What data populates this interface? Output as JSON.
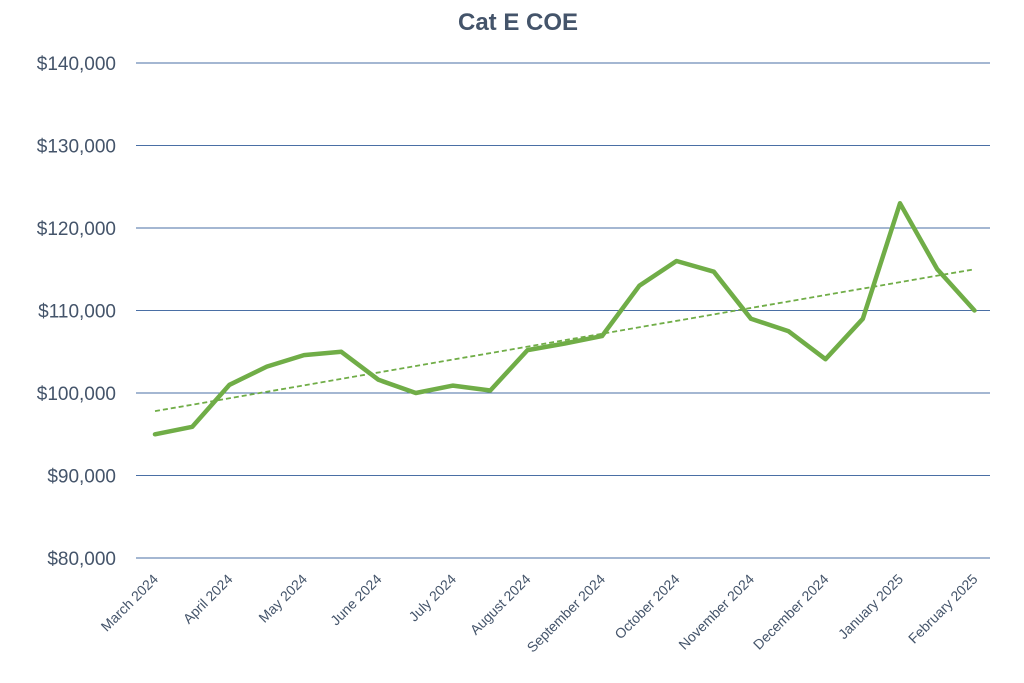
{
  "chart_data": {
    "type": "line",
    "title": "Cat E COE",
    "xlabel": "",
    "ylabel": "",
    "ylim": [
      80000,
      140000
    ],
    "yticks": [
      80000,
      90000,
      100000,
      110000,
      120000,
      130000,
      140000
    ],
    "ytick_labels": [
      "$80,000",
      "$90,000",
      "$100,000",
      "$110,000",
      "$120,000",
      "$130,000",
      "$140,000"
    ],
    "xtick_labels": [
      "March 2024",
      "April 2024",
      "May 2024",
      "June 2024",
      "July 2024",
      "August 2024",
      "September 2024",
      "October 2024",
      "November 2024",
      "December 2024",
      "January 2025",
      "February 2025"
    ],
    "grid": true,
    "legend": "none",
    "points_per_month": 2,
    "series": [
      {
        "color": "#70ad47",
        "values": [
          95000,
          95900,
          101000,
          103200,
          104600,
          105000,
          101600,
          100000,
          100900,
          100300,
          105200,
          106000,
          106900,
          113000,
          116000,
          114700,
          109000,
          107500,
          104100,
          109000,
          123000,
          115000,
          110000
        ]
      }
    ],
    "trendline": {
      "type": "linear",
      "style": "dashed",
      "color": "#70ad47",
      "start": 97800,
      "end": 115000
    }
  }
}
